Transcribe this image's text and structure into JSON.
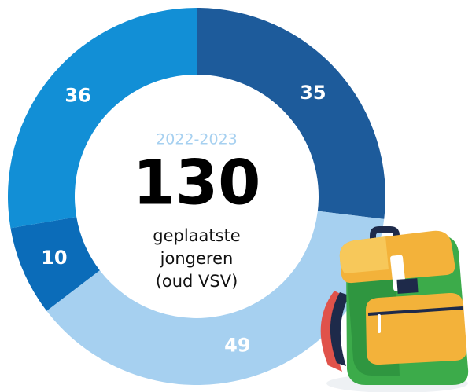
{
  "chart_data": {
    "type": "donut",
    "subtitle": "2022-2023",
    "center_value": 130,
    "center_label": [
      "geplaatste",
      "jongeren",
      "(oud VSV)"
    ],
    "categories": [
      null,
      null,
      null,
      null
    ],
    "values": [
      35,
      49,
      10,
      36
    ],
    "colors": [
      "#1d5b9b",
      "#a6d0f0",
      "#0b6cb9",
      "#128fd6"
    ]
  }
}
